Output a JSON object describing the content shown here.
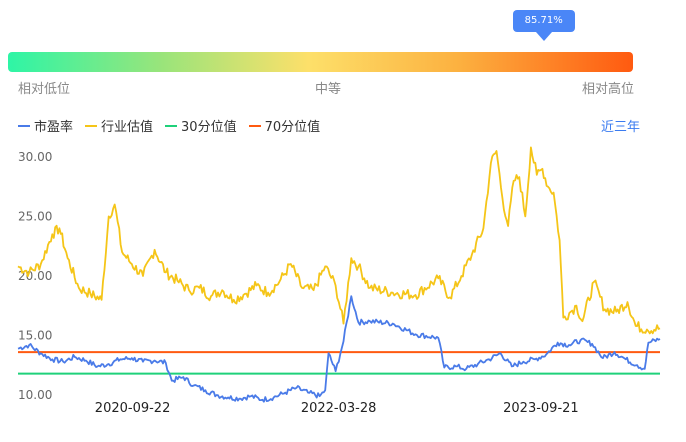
{
  "indicator": {
    "tooltip": "85.71%",
    "percentile": 85.71,
    "low_label": "相对低位",
    "mid_label": "中等",
    "high_label": "相对高位",
    "colors": [
      "#2ef5a6",
      "#fde06a",
      "#ff5a10"
    ]
  },
  "legend": [
    {
      "label": "市盈率",
      "color": "#4a7be8"
    },
    {
      "label": "行业估值",
      "color": "#f5c518"
    },
    {
      "label": "30分位值",
      "color": "#1fd17a"
    },
    {
      "label": "70分位值",
      "color": "#ff5a10"
    }
  ],
  "period_button": "近三年",
  "chart_data": {
    "type": "line",
    "ylim": [
      10,
      31
    ],
    "yticks": [
      10.0,
      15.0,
      20.0,
      25.0,
      30.0
    ],
    "ytick_labels": [
      "10.00",
      "15.00",
      "20.00",
      "25.00",
      "30.00"
    ],
    "x_start": "2019-11-20",
    "x_end": "2024-08-05",
    "xtick_labels": [
      "2020-09-22",
      "2022-03-28",
      "2023-09-21"
    ],
    "series": [
      {
        "name": "市盈率",
        "color": "#4a7be8",
        "points": [
          [
            "2019-11-20",
            13.9
          ],
          [
            "2019-12-20",
            14.2
          ],
          [
            "2020-01-20",
            13.5
          ],
          [
            "2020-02-20",
            13.0
          ],
          [
            "2020-03-20",
            12.8
          ],
          [
            "2020-04-20",
            13.2
          ],
          [
            "2020-05-20",
            12.9
          ],
          [
            "2020-06-20",
            12.4
          ],
          [
            "2020-07-20",
            12.6
          ],
          [
            "2020-08-20",
            13.0
          ],
          [
            "2020-09-20",
            13.1
          ],
          [
            "2020-10-20",
            12.8
          ],
          [
            "2020-11-20",
            12.9
          ],
          [
            "2020-12-20",
            12.7
          ],
          [
            "2021-01-05",
            11.2
          ],
          [
            "2021-02-05",
            11.5
          ],
          [
            "2021-03-05",
            10.8
          ],
          [
            "2021-04-05",
            10.4
          ],
          [
            "2021-05-05",
            10.0
          ],
          [
            "2021-06-05",
            9.8
          ],
          [
            "2021-07-05",
            9.7
          ],
          [
            "2021-08-05",
            9.9
          ],
          [
            "2021-09-05",
            9.6
          ],
          [
            "2021-10-05",
            9.8
          ],
          [
            "2021-11-05",
            10.2
          ],
          [
            "2021-12-05",
            10.6
          ],
          [
            "2022-01-05",
            10.2
          ],
          [
            "2022-02-05",
            9.9
          ],
          [
            "2022-02-20",
            10.4
          ],
          [
            "2022-03-01",
            13.5
          ],
          [
            "2022-03-20",
            12.0
          ],
          [
            "2022-04-10",
            14.5
          ],
          [
            "2022-05-01",
            18.3
          ],
          [
            "2022-05-20",
            16.1
          ],
          [
            "2022-06-20",
            16.2
          ],
          [
            "2022-08-20",
            16.0
          ],
          [
            "2022-10-20",
            15.1
          ],
          [
            "2022-12-20",
            14.8
          ],
          [
            "2023-01-05",
            12.3
          ],
          [
            "2023-02-05",
            12.4
          ],
          [
            "2023-03-05",
            12.2
          ],
          [
            "2023-04-05",
            12.6
          ],
          [
            "2023-05-05",
            13.0
          ],
          [
            "2023-06-05",
            13.5
          ],
          [
            "2023-07-05",
            12.4
          ],
          [
            "2023-08-05",
            12.8
          ],
          [
            "2023-09-05",
            13.0
          ],
          [
            "2023-10-05",
            13.4
          ],
          [
            "2023-11-05",
            14.4
          ],
          [
            "2023-12-05",
            14.2
          ],
          [
            "2024-01-05",
            14.6
          ],
          [
            "2024-02-05",
            14.3
          ],
          [
            "2024-03-05",
            13.1
          ],
          [
            "2024-04-05",
            13.6
          ],
          [
            "2024-05-05",
            13.0
          ],
          [
            "2024-06-05",
            12.5
          ],
          [
            "2024-06-25",
            12.2
          ],
          [
            "2024-07-05",
            14.4
          ],
          [
            "2024-08-05",
            14.7
          ]
        ]
      },
      {
        "name": "行业估值",
        "color": "#f5c518",
        "points": [
          [
            "2019-11-20",
            20.8
          ],
          [
            "2019-12-20",
            20.3
          ],
          [
            "2020-01-20",
            21.0
          ],
          [
            "2020-02-20",
            23.5
          ],
          [
            "2020-03-10",
            24.0
          ],
          [
            "2020-04-01",
            21.5
          ],
          [
            "2020-05-01",
            19.0
          ],
          [
            "2020-06-01",
            18.5
          ],
          [
            "2020-07-01",
            18.0
          ],
          [
            "2020-07-20",
            25.0
          ],
          [
            "2020-08-05",
            26.0
          ],
          [
            "2020-08-25",
            22.0
          ],
          [
            "2020-09-20",
            21.0
          ],
          [
            "2020-10-20",
            20.0
          ],
          [
            "2020-11-20",
            22.2
          ],
          [
            "2020-12-20",
            20.3
          ],
          [
            "2021-01-20",
            19.6
          ],
          [
            "2021-02-20",
            18.8
          ],
          [
            "2021-03-20",
            19.0
          ],
          [
            "2021-04-20",
            18.3
          ],
          [
            "2021-05-20",
            18.8
          ],
          [
            "2021-06-20",
            18.0
          ],
          [
            "2021-07-20",
            18.5
          ],
          [
            "2021-08-20",
            19.2
          ],
          [
            "2021-09-20",
            18.6
          ],
          [
            "2021-10-20",
            19.5
          ],
          [
            "2021-11-20",
            21.0
          ],
          [
            "2021-12-20",
            19.0
          ],
          [
            "2022-01-20",
            18.8
          ],
          [
            "2022-02-20",
            20.8
          ],
          [
            "2022-03-20",
            19.2
          ],
          [
            "2022-04-10",
            16.0
          ],
          [
            "2022-05-01",
            21.5
          ],
          [
            "2022-05-20",
            20.8
          ],
          [
            "2022-06-20",
            19.0
          ],
          [
            "2022-08-20",
            18.6
          ],
          [
            "2022-10-20",
            18.4
          ],
          [
            "2022-12-20",
            19.8
          ],
          [
            "2023-01-20",
            18.2
          ],
          [
            "2023-02-20",
            20.0
          ],
          [
            "2023-03-20",
            21.8
          ],
          [
            "2023-04-20",
            24.0
          ],
          [
            "2023-05-10",
            29.5
          ],
          [
            "2023-05-25",
            30.5
          ],
          [
            "2023-06-10",
            26.5
          ],
          [
            "2023-06-25",
            24.2
          ],
          [
            "2023-07-10",
            28.0
          ],
          [
            "2023-07-25",
            28.3
          ],
          [
            "2023-08-10",
            25.0
          ],
          [
            "2023-08-25",
            30.8
          ],
          [
            "2023-09-10",
            28.5
          ],
          [
            "2023-09-25",
            29.0
          ],
          [
            "2023-10-10",
            27.5
          ],
          [
            "2023-10-25",
            27.0
          ],
          [
            "2023-11-10",
            23.0
          ],
          [
            "2023-11-20",
            16.5
          ],
          [
            "2023-12-10",
            17.0
          ],
          [
            "2023-12-25",
            17.5
          ],
          [
            "2024-01-10",
            16.2
          ],
          [
            "2024-02-10",
            19.5
          ],
          [
            "2024-03-10",
            17.2
          ],
          [
            "2024-04-10",
            17.0
          ],
          [
            "2024-05-10",
            17.8
          ],
          [
            "2024-06-01",
            15.8
          ],
          [
            "2024-07-01",
            15.5
          ],
          [
            "2024-08-05",
            15.6
          ]
        ]
      },
      {
        "name": "30分位值",
        "color": "#1fd17a",
        "value": 11.8
      },
      {
        "name": "70分位值",
        "color": "#ff5a10",
        "value": 13.6
      }
    ]
  }
}
